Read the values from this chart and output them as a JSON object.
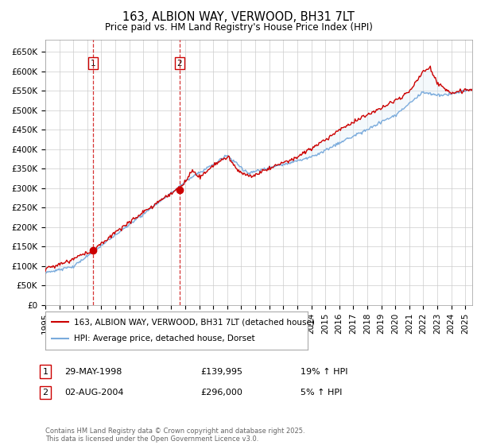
{
  "title": "163, ALBION WAY, VERWOOD, BH31 7LT",
  "subtitle": "Price paid vs. HM Land Registry's House Price Index (HPI)",
  "ylim": [
    0,
    680000
  ],
  "yticks": [
    0,
    50000,
    100000,
    150000,
    200000,
    250000,
    300000,
    350000,
    400000,
    450000,
    500000,
    550000,
    600000,
    650000
  ],
  "ytick_labels": [
    "£0",
    "£50K",
    "£100K",
    "£150K",
    "£200K",
    "£250K",
    "£300K",
    "£350K",
    "£400K",
    "£450K",
    "£500K",
    "£550K",
    "£600K",
    "£650K"
  ],
  "xlim_start": 1995.0,
  "xlim_end": 2025.5,
  "xtick_years": [
    1995,
    1996,
    1997,
    1998,
    1999,
    2000,
    2001,
    2002,
    2003,
    2004,
    2005,
    2006,
    2007,
    2008,
    2009,
    2010,
    2011,
    2012,
    2013,
    2014,
    2015,
    2016,
    2017,
    2018,
    2019,
    2020,
    2021,
    2022,
    2023,
    2024,
    2025
  ],
  "sale1_x": 1998.41,
  "sale1_y": 139995,
  "sale1_label": "1",
  "sale2_x": 2004.58,
  "sale2_y": 296000,
  "sale2_label": "2",
  "legend_line1": "163, ALBION WAY, VERWOOD, BH31 7LT (detached house)",
  "legend_line2": "HPI: Average price, detached house, Dorset",
  "annotation1_date": "29-MAY-1998",
  "annotation1_price": "£139,995",
  "annotation1_hpi": "19% ↑ HPI",
  "annotation2_date": "02-AUG-2004",
  "annotation2_price": "£296,000",
  "annotation2_hpi": "5% ↑ HPI",
  "footer": "Contains HM Land Registry data © Crown copyright and database right 2025.\nThis data is licensed under the Open Government Licence v3.0.",
  "line_color_property": "#cc0000",
  "line_color_hpi": "#7aabdc",
  "fill_color": "#d6e8f7",
  "bg_color": "#ffffff",
  "grid_color": "#cccccc",
  "sale_marker_color": "#cc0000",
  "vline_color": "#cc0000"
}
